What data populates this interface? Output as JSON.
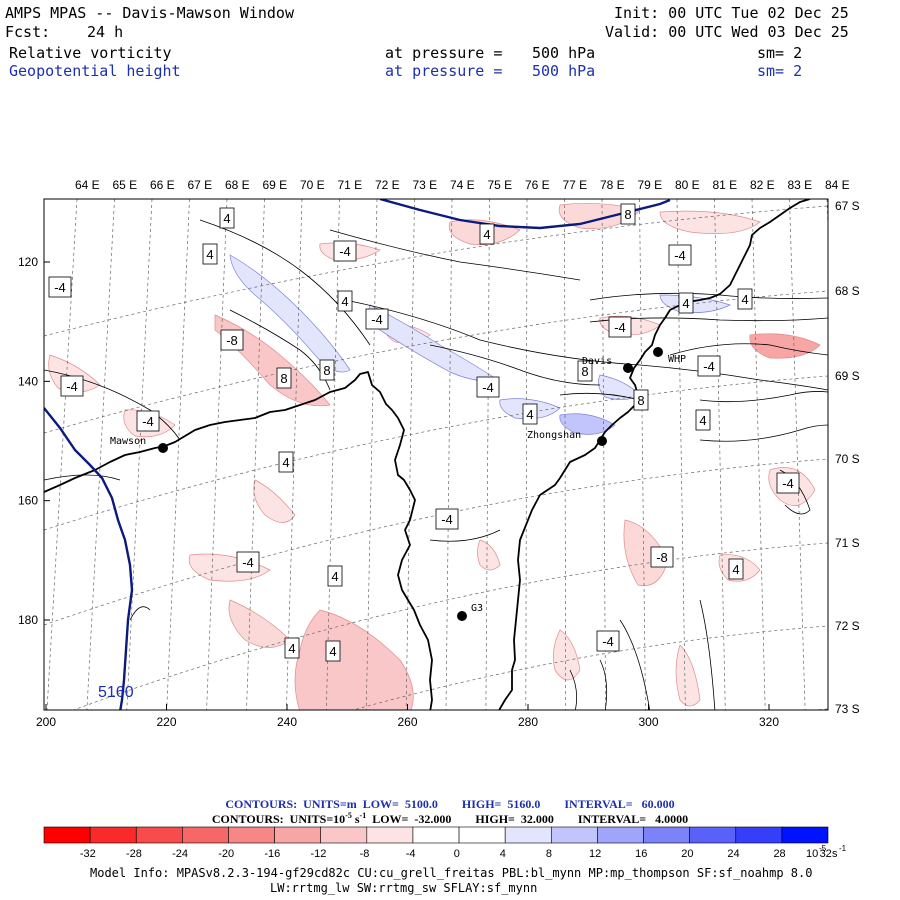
{
  "header": {
    "title": "AMPS MPAS -- Davis-Mawson Window",
    "fcst_label": "Fcst:",
    "fcst_value": "24 h",
    "init": "Init: 00 UTC Tue 02 Dec 25",
    "valid": "Valid: 00 UTC Wed 03 Dec 25",
    "fields": [
      {
        "name": "Relative vorticity",
        "pressure_label": "at pressure =",
        "pressure": "500 hPa",
        "sm": "sm= 2",
        "color": "#000000"
      },
      {
        "name": "Geopotential height",
        "pressure_label": "at pressure =",
        "pressure": "500 hPa",
        "sm": "sm= 2",
        "color": "#1b2fb0"
      }
    ]
  },
  "map": {
    "top_lon_labels": [
      "64 E",
      "65 E",
      "66 E",
      "67 E",
      "68 E",
      "69 E",
      "70 E",
      "71 E",
      "72 E",
      "73 E",
      "74 E",
      "75 E",
      "76 E",
      "77 E",
      "78 E",
      "79 E",
      "80 E",
      "81 E",
      "82 E",
      "83 E",
      "84 E"
    ],
    "right_lat_labels": [
      "67 S",
      "68 S",
      "69 S",
      "70 S",
      "71 S",
      "72 S",
      "73 S"
    ],
    "bottom_x_ticks": [
      200,
      220,
      240,
      260,
      280,
      300,
      320
    ],
    "left_y_ticks": [
      120,
      140,
      160,
      180
    ],
    "stations": [
      {
        "name": "Mawson"
      },
      {
        "name": "Davis"
      },
      {
        "name": "WHP"
      },
      {
        "name": "Zhongshan"
      },
      {
        "name": "G3"
      }
    ],
    "vorticity_labels": [
      "4",
      "4",
      "-4",
      "-4",
      "4",
      "8",
      "-4",
      "-8",
      "8",
      "-4",
      "-4",
      "8",
      "-4",
      "4",
      "-4",
      "8",
      "4",
      "-4",
      "4",
      "-4",
      "4",
      "8",
      "4",
      "4",
      "-4",
      "-4",
      "-4",
      "4",
      "-8",
      "4",
      "-4",
      "4",
      "4"
    ],
    "height_contour_label": "5160",
    "colors": {
      "height_contour": "#0b1a7c",
      "coast": "#000000",
      "neg": "#e8383a",
      "pos": "#3a4ee6"
    }
  },
  "contours": {
    "line1": "CONTOURS:  UNITS=m  LOW=  5100.0        HIGH=  5160.0        INTERVAL=   60.000",
    "line2_pre": "CONTOURS:  UNITS=10",
    "line2_exp": "-5",
    "line2_mid": " s",
    "line2_exp2": "-1",
    "line2_post": "  LOW=  -32.000        HIGH=  32.000        INTERVAL=   4.0000"
  },
  "colorbar": {
    "colors": [
      "#ff0000",
      "#fb2a2a",
      "#f84b4b",
      "#f76767",
      "#f78686",
      "#f7a5a5",
      "#f9c7c7",
      "#fde3e3",
      "#ffffff",
      "#ffffff",
      "#e3e5fd",
      "#c2c5fb",
      "#a0a5f9",
      "#7c82f8",
      "#5a61f8",
      "#353ef9",
      "#0012ff"
    ],
    "labels": [
      "-32",
      "-28",
      "-24",
      "-20",
      "-16",
      "-12",
      "-8",
      "-4",
      "0",
      "4",
      "8",
      "12",
      "16",
      "20",
      "24",
      "28",
      "32"
    ],
    "unit_base": "10",
    "unit_exp": "-5",
    "unit_s": "s",
    "unit_s_exp": "-1"
  },
  "model_info": {
    "line1": "Model Info: MPASv8.2.3-194-gf29cd82c CU:cu_grell_freitas PBL:bl_mynn MP:mp_thompson SF:sf_noahmp 8.0",
    "line2": "LW:rrtmg_lw SW:rrtmg_sw SFLAY:sf_mynn"
  }
}
